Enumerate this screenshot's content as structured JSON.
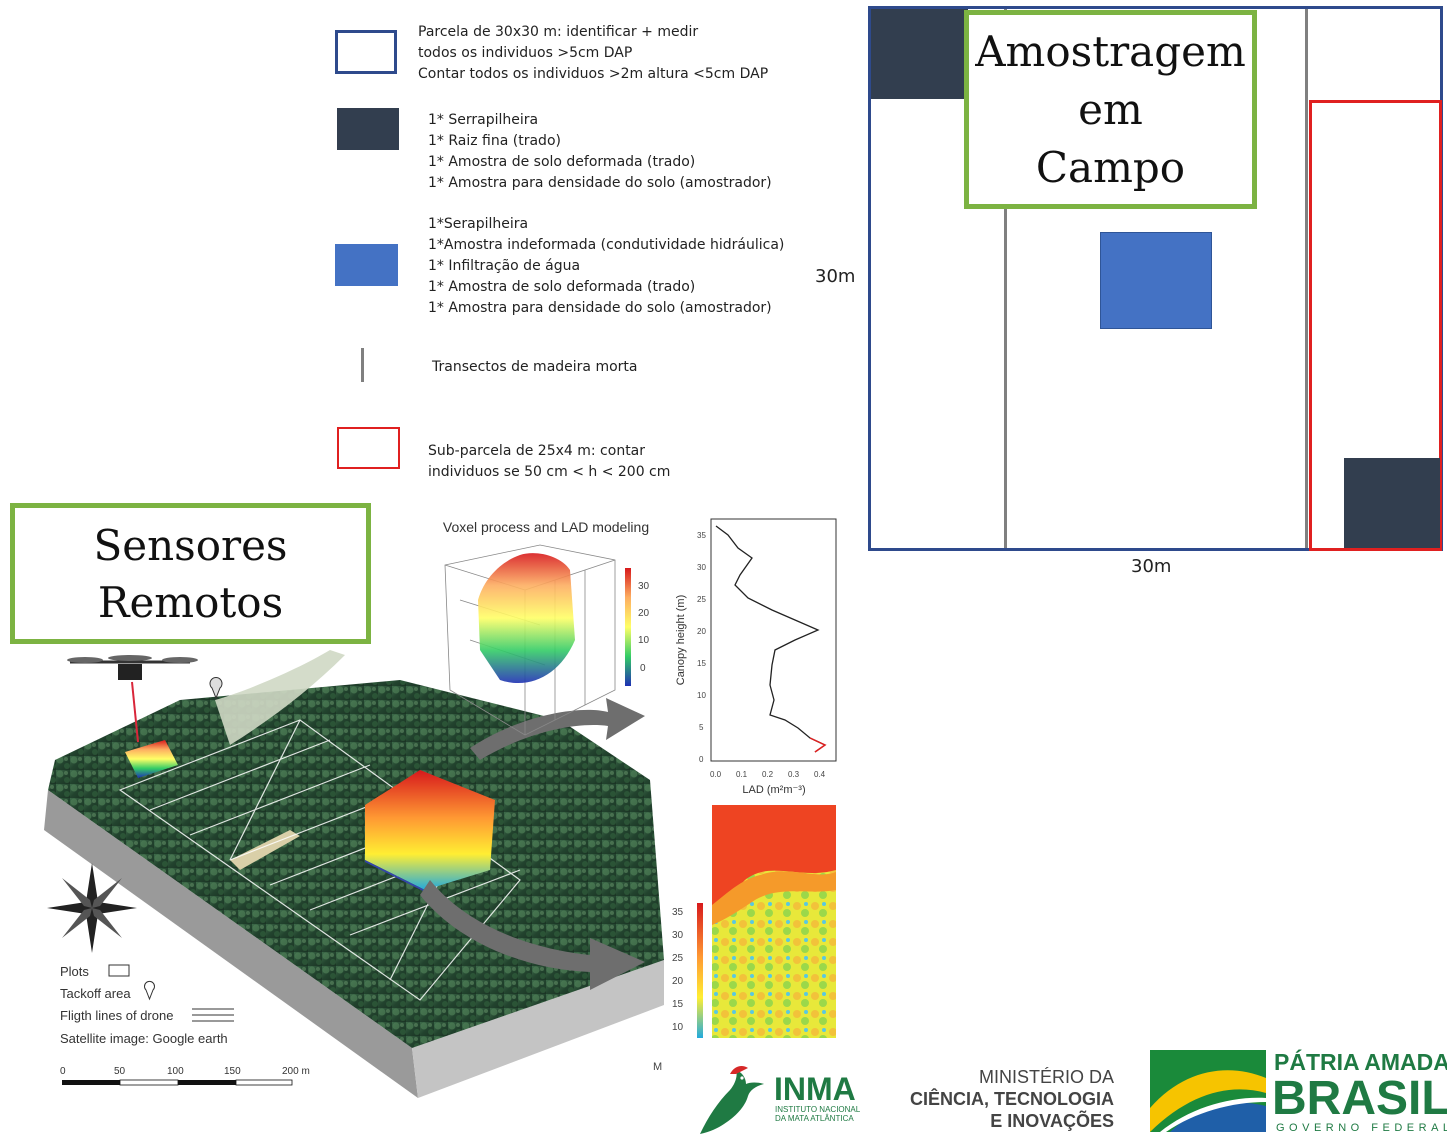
{
  "legend": {
    "items": [
      {
        "lines": [
          "Parcela de 30x30 m: identificar + medir",
          "todos os individuos >5cm DAP",
          "Contar todos os individuos >2m altura <5cm DAP"
        ],
        "swatch": "outline-blue"
      },
      {
        "lines": [
          "1* Serrapilheira",
          "1* Raiz fina (trado)",
          "1* Amostra de solo deformada (trado)",
          "1* Amostra para densidade do solo (amostrador)"
        ],
        "swatch": "dark-navy"
      },
      {
        "lines": [
          "1*Serapilheira",
          "1*Amostra indeformada (condutividade hidráulica)",
          "1* Infiltração de água",
          "1* Amostra de solo deformada (trado)",
          "1* Amostra para densidade do solo (amostrador)"
        ],
        "swatch": "blue"
      },
      {
        "lines": [
          "Transectos de madeira morta"
        ],
        "swatch": "gray-line"
      },
      {
        "lines": [
          "Sub-parcela de 25x4 m: contar",
          "individuos se 50 cm < h < 200 cm"
        ],
        "swatch": "outline-red"
      }
    ]
  },
  "plot": {
    "side_label": "30m",
    "bottom_label": "30m"
  },
  "titles": {
    "field_line1": "Amostragem",
    "field_line2": "em",
    "field_line3": "Campo",
    "remote_line1": "Sensores",
    "remote_line2": "Remotos"
  },
  "remote_figure": {
    "voxel_title": "Voxel process and LAD modeling",
    "voxel_colorbar_ticks": [
      "30",
      "20",
      "10",
      "0"
    ],
    "profile_ylabel": "Canopy height (m)",
    "profile_xlabel": "LAD (m²m⁻³)",
    "profile_yticks": [
      "35",
      "30",
      "25",
      "20",
      "15",
      "10",
      "5",
      "0"
    ],
    "profile_xticks": [
      "0.0",
      "0.1",
      "0.2",
      "0.3",
      "0.4"
    ],
    "chm_colorbar_ticks": [
      "35",
      "30",
      "25",
      "20",
      "15",
      "10"
    ],
    "chm_letter": "M",
    "map_legend": [
      "Plots",
      "Tackoff area",
      "Fligth lines of drone",
      "Satellite image: Google earth"
    ],
    "scale_ticks": [
      "0",
      "50",
      "100",
      "150",
      "200 m"
    ]
  },
  "logos": {
    "inma_name": "INMA",
    "inma_sub1": "INSTITUTO NACIONAL",
    "inma_sub2": "DA MATA ATLÂNTICA",
    "ministry_line1": "MINISTÉRIO DA",
    "ministry_line2": "CIÊNCIA, TECNOLOGIA",
    "ministry_line3": "E INOVAÇÕES",
    "gov_line1": "PÁTRIA AMADA",
    "gov_line2": "BRASIL",
    "gov_line3": "GOVERNO FEDERAL"
  },
  "colors": {
    "plot_border": "#2e4a8c",
    "dark_navy": "#323e4f",
    "blue": "#4472c4",
    "red": "#e02020",
    "green_frame": "#7cb342",
    "gray_line": "#808080"
  }
}
